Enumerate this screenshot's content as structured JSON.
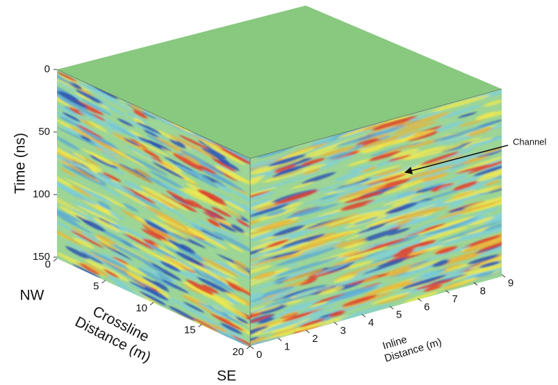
{
  "chart_data": {
    "type": "cube",
    "ylabel": "Time (ns)",
    "ylim": [
      0,
      150
    ],
    "yticks": [
      0,
      50,
      100,
      150
    ],
    "zlabel": [
      "Crossline",
      "Distance (m)"
    ],
    "zlim": [
      0,
      20
    ],
    "zticks": [
      0,
      5,
      10,
      15,
      20
    ],
    "z_start_label": "NW",
    "z_end_label": "SE",
    "xlabel": [
      "Inline",
      "Distance (m)"
    ],
    "xlim": [
      0,
      9
    ],
    "xticks": [
      0,
      1,
      2,
      3,
      4,
      5,
      6,
      7,
      8,
      9
    ],
    "annotations": [
      {
        "text": "Channel"
      }
    ],
    "top_color": "#88c87f"
  }
}
